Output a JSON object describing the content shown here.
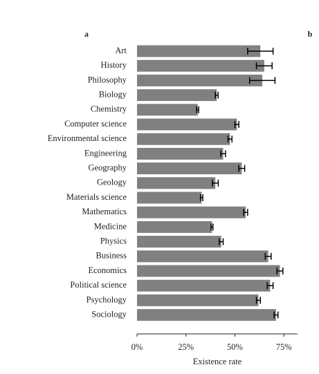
{
  "chart_data": {
    "type": "barh",
    "panel_labels": [
      "a",
      "b"
    ],
    "xlabel": "Existence rate",
    "categories": [
      "Art",
      "History",
      "Philosophy",
      "Biology",
      "Chemistry",
      "Computer science",
      "Environmental science",
      "Engineering",
      "Geography",
      "Geology",
      "Materials science",
      "Mathematics",
      "Medicine",
      "Physics",
      "Business",
      "Economics",
      "Political science",
      "Psychology",
      "Sociology"
    ],
    "values": [
      63,
      65,
      64,
      40.7,
      31,
      51,
      47.5,
      44,
      53.5,
      40,
      33,
      55.5,
      38.3,
      43,
      67,
      73,
      68,
      62,
      71
    ],
    "errors": [
      6.5,
      4,
      6.5,
      0.7,
      0.5,
      1,
      1,
      1.2,
      1.5,
      1.5,
      0.6,
      1,
      0.5,
      1,
      1.5,
      1.5,
      1.5,
      1,
      1
    ],
    "color": "#808080",
    "xlim": [
      0,
      82
    ],
    "xticks": [
      {
        "value": 0,
        "label": "0%"
      },
      {
        "value": 25,
        "label": "25%"
      },
      {
        "value": 50,
        "label": "50%"
      },
      {
        "value": 75,
        "label": "75%"
      }
    ]
  }
}
